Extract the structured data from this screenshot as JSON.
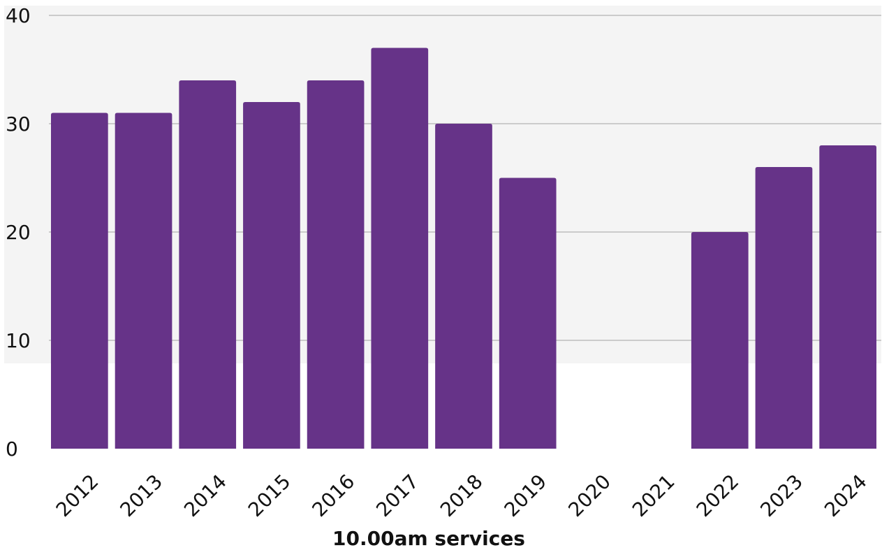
{
  "chart_data": {
    "type": "bar",
    "title": "",
    "xlabel": "10.00am services",
    "ylabel": "",
    "categories": [
      "2012",
      "2013",
      "2014",
      "2015",
      "2016",
      "2017",
      "2018",
      "2019",
      "2020",
      "2021",
      "2022",
      "2023",
      "2024"
    ],
    "values": [
      31,
      31,
      34,
      32,
      34,
      37,
      30,
      25,
      0,
      0,
      20,
      26,
      28
    ],
    "ylim": [
      0,
      40
    ],
    "yticks": [
      "0",
      "10",
      "20",
      "30",
      "40"
    ],
    "grid": true,
    "colors": {
      "bar": "#663388",
      "grid": "#bdbdbd",
      "background_band": "#f4f4f4"
    }
  }
}
